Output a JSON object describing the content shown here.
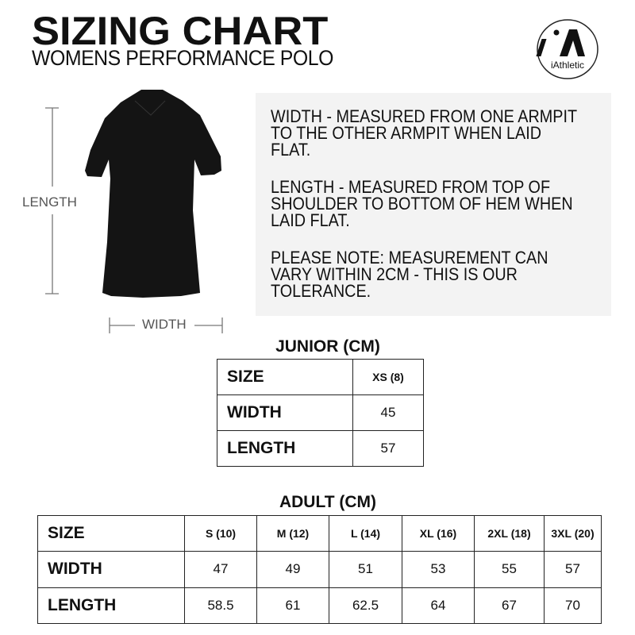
{
  "header": {
    "title": "SIZING CHART",
    "subtitle": "WOMENS PERFORMANCE POLO",
    "logo_text": "iAthletic",
    "logo_mark": "iA"
  },
  "diagram": {
    "length_label": "LENGTH",
    "width_label": "WIDTH"
  },
  "info": {
    "width_note": "WIDTH - MEASURED FROM ONE ARMPIT TO THE OTHER ARMPIT WHEN LAID FLAT.",
    "length_note": "LENGTH - MEASURED FROM TOP OF SHOULDER TO BOTTOM OF HEM WHEN LAID FLAT.",
    "tolerance_note": "PLEASE NOTE: MEASUREMENT CAN VARY WITHIN 2CM - THIS IS OUR TOLERANCE."
  },
  "junior": {
    "title": "JUNIOR (CM)",
    "rows": [
      [
        "SIZE",
        "XS (8)"
      ],
      [
        "WIDTH",
        "45"
      ],
      [
        "LENGTH",
        "57"
      ]
    ]
  },
  "adult": {
    "title": "ADULT (CM)",
    "rows": [
      [
        "SIZE",
        "S (10)",
        "M (12)",
        "L (14)",
        "XL (16)",
        "2XL (18)",
        "3XL (20)"
      ],
      [
        "WIDTH",
        "47",
        "49",
        "51",
        "53",
        "55",
        "57"
      ],
      [
        "LENGTH",
        "58.5",
        "61",
        "62.5",
        "64",
        "67",
        "70"
      ]
    ]
  }
}
